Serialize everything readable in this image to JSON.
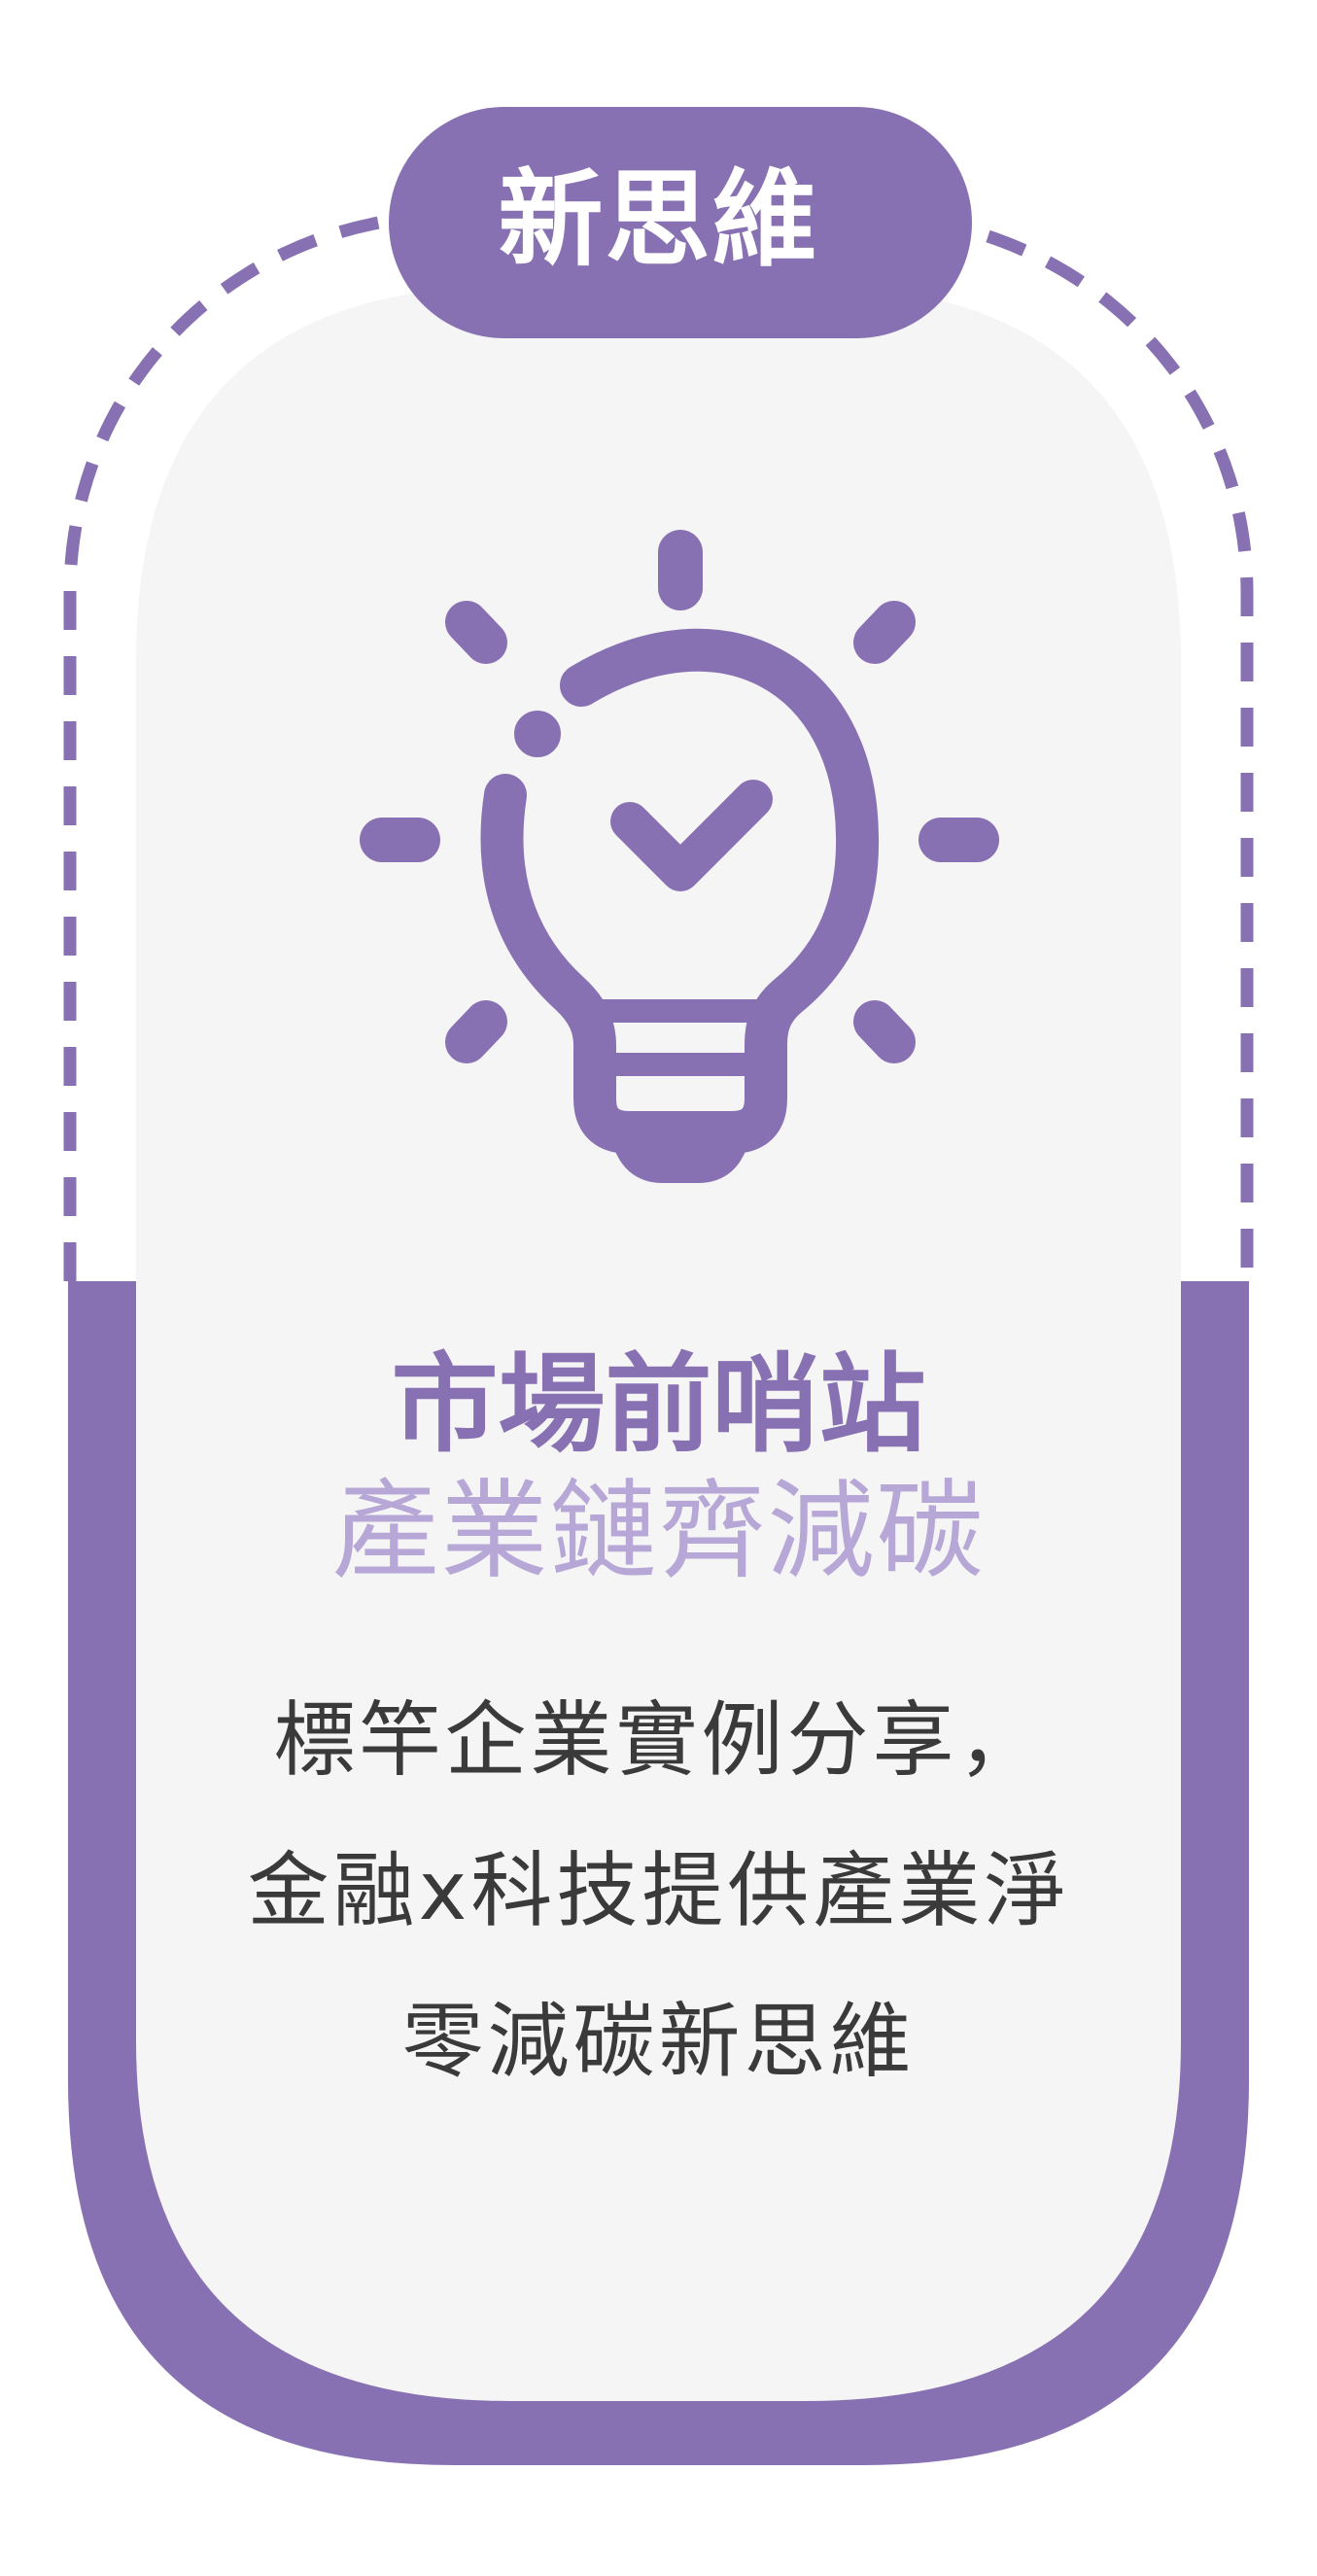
{
  "badge": {
    "label": "新思維"
  },
  "card": {
    "icon": "lightbulb-check-icon",
    "heading": "市場前哨站",
    "subheading": "產業鏈齊減碳",
    "description_lines": [
      "標竿企業實例分享，",
      "金融x科技提供產業淨",
      "零減碳新思維"
    ]
  },
  "colors": {
    "accent": "#8871b2",
    "accent_light": "#b7a7d6",
    "card_background": "#f5f5f5",
    "text": "#3a3a3a",
    "page_background": "#ffffff"
  }
}
